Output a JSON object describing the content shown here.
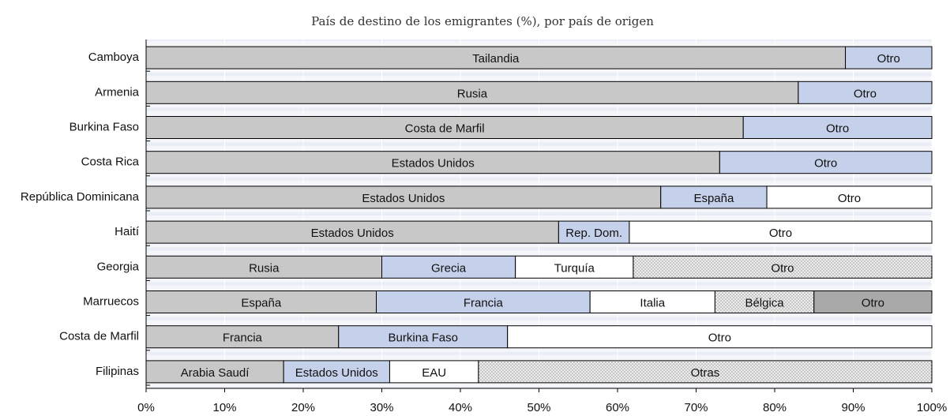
{
  "chart_data": {
    "type": "stacked-bar-horizontal",
    "subtitle": "País de destino de los emigrantes (%), por país de origen",
    "xlim": [
      0,
      100
    ],
    "xticks": [
      {
        "value": 0,
        "label": "0%"
      },
      {
        "value": 10,
        "label": "10%"
      },
      {
        "value": 20,
        "label": "20%"
      },
      {
        "value": 30,
        "label": "30%"
      },
      {
        "value": 40,
        "label": "40%"
      },
      {
        "value": 50,
        "label": "50%"
      },
      {
        "value": 60,
        "label": "60%"
      },
      {
        "value": 70,
        "label": "70%"
      },
      {
        "value": 80,
        "label": "80%"
      },
      {
        "value": 90,
        "label": "90%"
      },
      {
        "value": 100,
        "label": "100%"
      }
    ],
    "categories": [
      "Camboya",
      "Armenia",
      "Burkina Faso",
      "Costa Rica",
      "República Dominicana",
      "Haití",
      "Georgia",
      "Marruecos",
      "Costa de Marfil",
      "Filipinas"
    ],
    "segments": [
      [
        {
          "label": "Tailandia",
          "value": 89,
          "color": "#c8c8c8"
        },
        {
          "label": "Otro",
          "value": 11,
          "color": "#c5d0ea"
        }
      ],
      [
        {
          "label": "Rusia",
          "value": 83,
          "color": "#c8c8c8"
        },
        {
          "label": "Otro",
          "value": 17,
          "color": "#c5d0ea"
        }
      ],
      [
        {
          "label": "Costa de Marfil",
          "value": 76,
          "color": "#c8c8c8"
        },
        {
          "label": "Otro",
          "value": 24,
          "color": "#c5d0ea"
        }
      ],
      [
        {
          "label": "Estados Unidos",
          "value": 73,
          "color": "#c8c8c8"
        },
        {
          "label": "Otro",
          "value": 27,
          "color": "#c5d0ea"
        }
      ],
      [
        {
          "label": "Estados Unidos",
          "value": 65.5,
          "color": "#c8c8c8"
        },
        {
          "label": "España",
          "value": 13.5,
          "color": "#c5d0ea"
        },
        {
          "label": "Otro",
          "value": 21,
          "color": "#ffffff"
        }
      ],
      [
        {
          "label": "Estados Unidos",
          "value": 52.5,
          "color": "#c8c8c8"
        },
        {
          "label": "Rep. Dom.",
          "value": 9,
          "color": "#c5d0ea"
        },
        {
          "label": "Otro",
          "value": 38.5,
          "color": "#ffffff"
        }
      ],
      [
        {
          "label": "Rusia",
          "value": 30,
          "color": "#c8c8c8"
        },
        {
          "label": "Grecia",
          "value": 17,
          "color": "#c5d0ea"
        },
        {
          "label": "Turquía",
          "value": 15,
          "color": "#ffffff"
        },
        {
          "label": "Otro",
          "value": 38,
          "color": "#e2e2e2",
          "pattern": "dots"
        }
      ],
      [
        {
          "label": "España",
          "value": 29.3,
          "color": "#c8c8c8"
        },
        {
          "label": "Francia",
          "value": 27.2,
          "color": "#c5d0ea"
        },
        {
          "label": "Italia",
          "value": 15.9,
          "color": "#ffffff"
        },
        {
          "label": "Bélgica",
          "value": 12.6,
          "color": "#e2e2e2",
          "pattern": "dots"
        },
        {
          "label": "Otro",
          "value": 15,
          "color": "#a9a9a9"
        }
      ],
      [
        {
          "label": "Francia",
          "value": 24.5,
          "color": "#c8c8c8"
        },
        {
          "label": "Burkina Faso",
          "value": 21.5,
          "color": "#c5d0ea"
        },
        {
          "label": "Otro",
          "value": 54,
          "color": "#ffffff"
        }
      ],
      [
        {
          "label": "Arabia Saudí",
          "value": 17.5,
          "color": "#c8c8c8"
        },
        {
          "label": "Estados Unidos",
          "value": 13.5,
          "color": "#c5d0ea"
        },
        {
          "label": "EAU",
          "value": 11.3,
          "color": "#ffffff"
        },
        {
          "label": "Otras",
          "value": 57.7,
          "color": "#e2e2e2",
          "pattern": "dots"
        }
      ]
    ]
  }
}
